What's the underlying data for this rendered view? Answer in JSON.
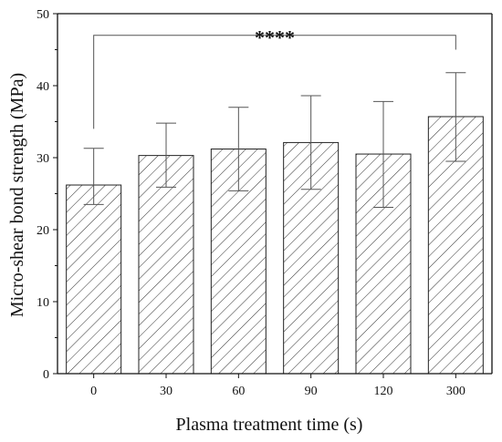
{
  "chart_data": {
    "type": "bar",
    "title": "",
    "xlabel": "Plasma treatment time (s)",
    "ylabel": "Micro-shear bond strength (MPa)",
    "categories": [
      "0",
      "30",
      "60",
      "90",
      "120",
      "300"
    ],
    "values": [
      26.2,
      30.3,
      31.2,
      32.1,
      30.5,
      35.7
    ],
    "error_upper": [
      31.3,
      34.8,
      37.0,
      38.6,
      37.8,
      41.8
    ],
    "error_lower": [
      23.5,
      25.9,
      25.4,
      25.6,
      23.1,
      29.5
    ],
    "ylim": [
      0,
      50
    ],
    "yticks": [
      "0",
      "10",
      "20",
      "30",
      "40",
      "50"
    ],
    "grid": false,
    "bar_fill": "hatched",
    "bar_color": "#ffffff",
    "edge_color": "#222222",
    "annotation": {
      "text": "****",
      "from_category": "0",
      "to_category": "300",
      "y": 47
    }
  }
}
